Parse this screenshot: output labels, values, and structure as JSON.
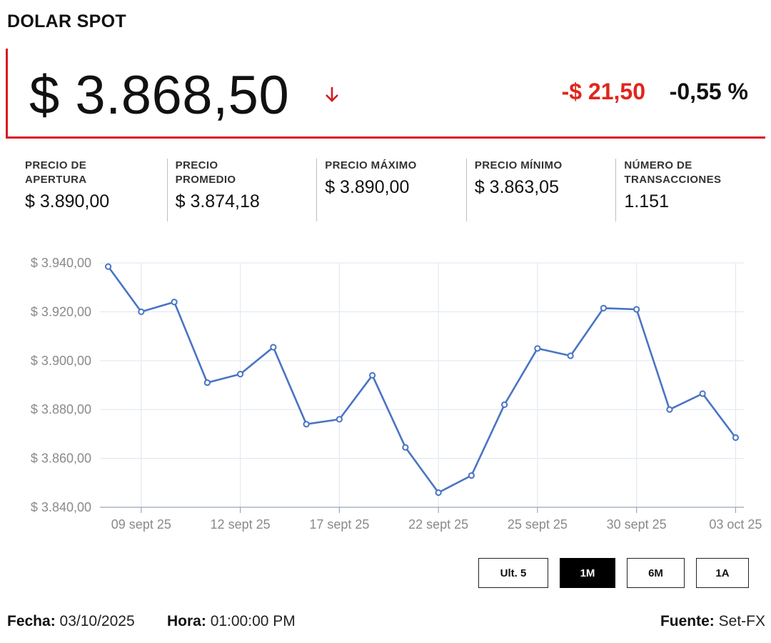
{
  "header": {
    "title": "DOLAR SPOT"
  },
  "price": {
    "value": "$ 3.868,50",
    "direction_icon": "arrow-down-icon",
    "change_abs": "-$ 21,50",
    "change_pct": "-0,55 %"
  },
  "stats": [
    {
      "label": "PRECIO DE APERTURA",
      "value": "$ 3.890,00"
    },
    {
      "label": "PRECIO PROMEDIO",
      "value": "$ 3.874,18"
    },
    {
      "label": "PRECIO MÁXIMO",
      "value": "$ 3.890,00"
    },
    {
      "label": "PRECIO MÍNIMO",
      "value": "$ 3.863,05"
    },
    {
      "label": "NÚMERO DE TRANSACCIONES",
      "value": "1.151"
    }
  ],
  "colors": {
    "accent_red": "#d71920",
    "negative": "#e1251b",
    "line": "#4a74c4",
    "grid": "#e3e9f3"
  },
  "chart_data": {
    "type": "line",
    "title": "",
    "xlabel": "",
    "ylabel": "",
    "ylim": [
      3840,
      3940
    ],
    "yticks": [
      "$ 3.940,00",
      "$ 3.920,00",
      "$ 3.900,00",
      "$ 3.880,00",
      "$ 3.860,00",
      "$ 3.840,00"
    ],
    "ytick_values": [
      3940,
      3920,
      3900,
      3880,
      3860,
      3840
    ],
    "xticks": [
      "09 sept 25",
      "12 sept 25",
      "17 sept 25",
      "22 sept 25",
      "25 sept 25",
      "30 sept 25",
      "03 oct 25"
    ],
    "grid": true,
    "series": [
      {
        "x": [
          "08 sept 25",
          "09 sept 25",
          "10 sept 25",
          "11 sept 25",
          "12 sept 25",
          "15 sept 25",
          "16 sept 25",
          "17 sept 25",
          "18 sept 25",
          "19 sept 25",
          "22 sept 25",
          "23 sept 25",
          "24 sept 25",
          "25 sept 25",
          "26 sept 25",
          "29 sept 25",
          "30 sept 25",
          "01 oct 25",
          "02 oct 25",
          "03 oct 25"
        ],
        "values": [
          3938.5,
          3920.0,
          3924.0,
          3891.0,
          3894.5,
          3905.5,
          3874.0,
          3876.0,
          3894.0,
          3864.5,
          3846.0,
          3853.0,
          3882.0,
          3905.0,
          3902.0,
          3921.5,
          3921.0,
          3880.0,
          3886.5,
          3868.5
        ]
      }
    ]
  },
  "range_buttons": [
    {
      "label": "Ult. 5",
      "active": false
    },
    {
      "label": "1M",
      "active": true
    },
    {
      "label": "6M",
      "active": false
    },
    {
      "label": "1A",
      "active": false
    }
  ],
  "footer": {
    "fecha_label": "Fecha:",
    "fecha_value": "03/10/2025",
    "hora_label": "Hora:",
    "hora_value": "01:00:00 PM",
    "fuente_label": "Fuente:",
    "fuente_value": "Set-FX"
  }
}
